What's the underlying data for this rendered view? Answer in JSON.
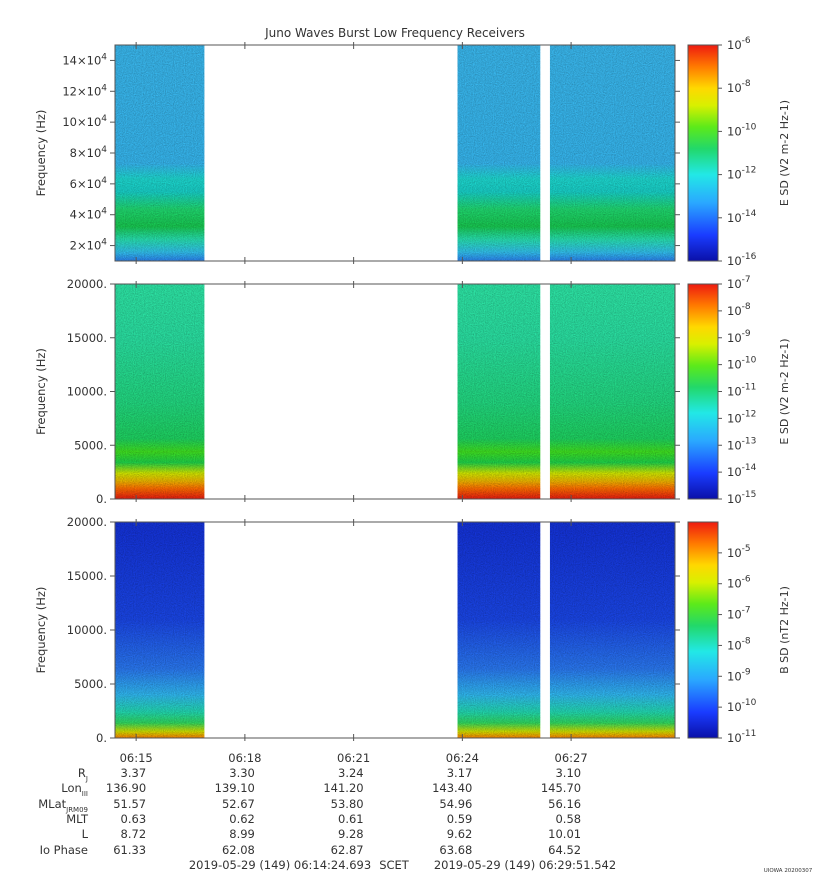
{
  "chart_data": {
    "type": "heatmap",
    "title": "Juno Waves Burst Low Frequency Receivers",
    "x_time_ticks": [
      "06:15",
      "06:18",
      "06:21",
      "06:24",
      "06:27"
    ],
    "data_intervals": [
      [
        "06:14:25",
        "06:16:53"
      ],
      [
        "06:23:52",
        "06:26:09"
      ],
      [
        "06:26:25",
        "06:29:52"
      ]
    ],
    "panels": [
      {
        "ylabel": "Frequency (Hz)",
        "y_range": [
          10000,
          150000
        ],
        "y_ticks": [
          {
            "mant": "2",
            "exp": "4",
            "value": 20000
          },
          {
            "mant": "4",
            "exp": "4",
            "value": 40000
          },
          {
            "mant": "6",
            "exp": "4",
            "value": 60000
          },
          {
            "mant": "8",
            "exp": "4",
            "value": 80000
          },
          {
            "mant": "10",
            "exp": "4",
            "value": 100000
          },
          {
            "mant": "12",
            "exp": "4",
            "value": 120000
          },
          {
            "mant": "14",
            "exp": "4",
            "value": 140000
          }
        ],
        "colorbar": {
          "label": "E SD (V2 m-2 Hz-1)",
          "scale": "log",
          "range": [
            -16,
            -6
          ],
          "tick_exponents": [
            "-16",
            "-14",
            "-12",
            "-10",
            "-8",
            "-6"
          ]
        }
      },
      {
        "ylabel": "Frequency (Hz)",
        "y_range": [
          0,
          20000
        ],
        "y_ticks": [
          {
            "label": "0.",
            "value": 0
          },
          {
            "label": "5000.",
            "value": 5000
          },
          {
            "label": "10000.",
            "value": 10000
          },
          {
            "label": "15000.",
            "value": 15000
          },
          {
            "label": "20000.",
            "value": 20000
          }
        ],
        "colorbar": {
          "label": "E SD (V2 m-2 Hz-1)",
          "scale": "log",
          "range": [
            -15,
            -7
          ],
          "tick_exponents": [
            "-15",
            "-14",
            "-13",
            "-12",
            "-11",
            "-10",
            "-9",
            "-8",
            "-7"
          ]
        }
      },
      {
        "ylabel": "Frequency (Hz)",
        "y_range": [
          0,
          20000
        ],
        "y_ticks": [
          {
            "label": "0.",
            "value": 0
          },
          {
            "label": "5000.",
            "value": 5000
          },
          {
            "label": "10000.",
            "value": 10000
          },
          {
            "label": "15000.",
            "value": 15000
          },
          {
            "label": "20000.",
            "value": 20000
          }
        ],
        "colorbar": {
          "label": "B SD (nT2 Hz-1)",
          "scale": "log",
          "range": [
            -11,
            -4
          ],
          "tick_exponents": [
            "-11",
            "-10",
            "-9",
            "-8",
            "-7",
            "-6",
            "-5"
          ]
        }
      }
    ],
    "ephemeris": {
      "labels": [
        {
          "main": "R",
          "sub": "J"
        },
        {
          "main": "Lon",
          "sub": "III"
        },
        {
          "main": "MLat",
          "sub": "JRM09"
        },
        {
          "main": "MLT",
          "sub": ""
        },
        {
          "main": "L",
          "sub": ""
        },
        {
          "main": "Io Phase",
          "sub": ""
        }
      ],
      "columns": [
        [
          "3.37",
          "136.90",
          "51.57",
          "0.63",
          "8.72",
          "61.33"
        ],
        [
          "3.30",
          "139.10",
          "52.67",
          "0.62",
          "8.99",
          "62.08"
        ],
        [
          "3.24",
          "141.20",
          "53.80",
          "0.61",
          "9.28",
          "62.87"
        ],
        [
          "3.17",
          "143.40",
          "54.96",
          "0.59",
          "9.62",
          "63.68"
        ],
        [
          "3.10",
          "145.70",
          "56.16",
          "0.58",
          "10.01",
          "64.52"
        ]
      ]
    },
    "time_range": {
      "start": "2019-05-29 (149) 06:14:24.693",
      "mid": "SCET",
      "end": "2019-05-29 (149) 06:29:51.542"
    },
    "corner_tag": "UIOWA 20200307"
  }
}
